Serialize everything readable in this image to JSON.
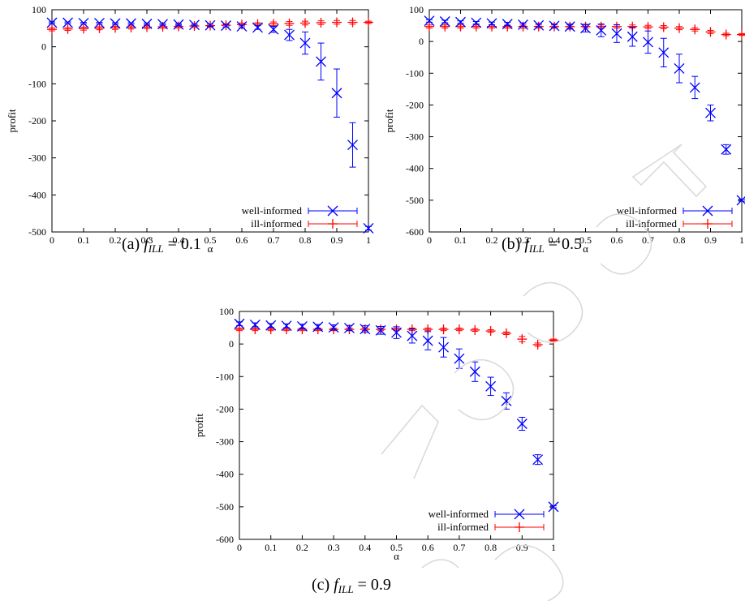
{
  "chart_data": [
    {
      "type": "scatter",
      "caption": {
        "prefix": "(a)",
        "var": "f",
        "sub": "ILL",
        "rest": " = 0.1"
      },
      "xlabel": "α",
      "ylabel": "profit",
      "xlim": [
        0,
        1
      ],
      "ylim": [
        -500,
        100
      ],
      "xticks": [
        0,
        0.1,
        0.2,
        0.3,
        0.4,
        0.5,
        0.6,
        0.7,
        0.8,
        0.9,
        1
      ],
      "xtick_labels": [
        "0",
        "0.1",
        "0.2",
        "0.3",
        "0.4",
        "0.5",
        "0.6",
        "0.7",
        "0.8",
        "0.9",
        "1"
      ],
      "yticks": [
        -500,
        -400,
        -300,
        -200,
        -100,
        0,
        100
      ],
      "ytick_labels": [
        "-500",
        "-400",
        "-300",
        "-200",
        "-100",
        "0",
        "100"
      ],
      "legend_position": "bottom-right",
      "grid": false,
      "x": [
        0,
        0.05,
        0.1,
        0.15,
        0.2,
        0.25,
        0.3,
        0.35,
        0.4,
        0.45,
        0.5,
        0.55,
        0.6,
        0.65,
        0.7,
        0.75,
        0.8,
        0.85,
        0.9,
        0.95,
        1
      ],
      "series": [
        {
          "name": "well-informed",
          "color": "#0000ff",
          "marker": "x",
          "values": [
            65,
            65,
            64,
            64,
            63,
            63,
            62,
            61,
            60,
            59,
            58,
            57,
            55,
            52,
            47,
            32,
            10,
            -40,
            -125,
            -265,
            -490
          ],
          "err": [
            2,
            2,
            2,
            2,
            2,
            2,
            2,
            2,
            2,
            2,
            3,
            3,
            4,
            5,
            8,
            15,
            30,
            50,
            65,
            60,
            5
          ]
        },
        {
          "name": "ill-informed",
          "color": "#ff0000",
          "marker": "+",
          "values": [
            47,
            48,
            49,
            50,
            51,
            52,
            53,
            54,
            55,
            56,
            57,
            58,
            60,
            61,
            62,
            63,
            64,
            65,
            66,
            66,
            66
          ],
          "err": [
            4,
            4,
            4,
            4,
            4,
            4,
            4,
            4,
            4,
            4,
            4,
            4,
            4,
            4,
            5,
            5,
            5,
            5,
            5,
            5,
            3
          ]
        }
      ]
    },
    {
      "type": "scatter",
      "caption": {
        "prefix": "(b)",
        "var": "f",
        "sub": "ILL",
        "rest": " = 0.5"
      },
      "xlabel": "α",
      "ylabel": "profit",
      "xlim": [
        0,
        1
      ],
      "ylim": [
        -600,
        100
      ],
      "xticks": [
        0,
        0.1,
        0.2,
        0.3,
        0.4,
        0.5,
        0.6,
        0.7,
        0.8,
        0.9,
        1
      ],
      "xtick_labels": [
        "0",
        "0.1",
        "0.2",
        "0.3",
        "0.4",
        "0.5",
        "0.6",
        "0.7",
        "0.8",
        "0.9",
        "1"
      ],
      "yticks": [
        -600,
        -500,
        -400,
        -300,
        -200,
        -100,
        0,
        100
      ],
      "ytick_labels": [
        "-600",
        "-500",
        "-400",
        "-300",
        "-200",
        "-100",
        "0",
        "100"
      ],
      "legend_position": "bottom-right",
      "grid": false,
      "x": [
        0,
        0.05,
        0.1,
        0.15,
        0.2,
        0.25,
        0.3,
        0.35,
        0.4,
        0.45,
        0.5,
        0.55,
        0.6,
        0.65,
        0.7,
        0.75,
        0.8,
        0.85,
        0.9,
        0.95,
        1
      ],
      "series": [
        {
          "name": "well-informed",
          "color": "#0000ff",
          "marker": "x",
          "values": [
            65,
            63,
            61,
            59,
            57,
            55,
            53,
            51,
            49,
            47,
            42,
            35,
            25,
            15,
            -2,
            -35,
            -85,
            -145,
            -225,
            -340,
            -500
          ],
          "err": [
            4,
            4,
            4,
            4,
            4,
            5,
            5,
            5,
            6,
            8,
            12,
            20,
            28,
            30,
            35,
            45,
            45,
            35,
            25,
            15,
            3
          ]
        },
        {
          "name": "ill-informed",
          "color": "#ff0000",
          "marker": "+",
          "values": [
            47,
            47,
            47,
            47,
            47,
            47,
            47,
            47,
            47,
            47,
            47,
            47,
            47,
            47,
            46,
            45,
            42,
            38,
            30,
            22,
            22
          ],
          "err": [
            5,
            5,
            5,
            5,
            5,
            5,
            5,
            5,
            5,
            5,
            5,
            5,
            5,
            5,
            5,
            5,
            5,
            5,
            5,
            4,
            3
          ]
        }
      ]
    },
    {
      "type": "scatter",
      "caption": {
        "prefix": "(c)",
        "var": "f",
        "sub": "ILL",
        "rest": " = 0.9"
      },
      "xlabel": "α",
      "ylabel": "profit",
      "xlim": [
        0,
        1
      ],
      "ylim": [
        -600,
        100
      ],
      "xticks": [
        0,
        0.1,
        0.2,
        0.3,
        0.4,
        0.5,
        0.6,
        0.7,
        0.8,
        0.9,
        1
      ],
      "xtick_labels": [
        "0",
        "0.1",
        "0.2",
        "0.3",
        "0.4",
        "0.5",
        "0.6",
        "0.7",
        "0.8",
        "0.9",
        "1"
      ],
      "yticks": [
        -600,
        -500,
        -400,
        -300,
        -200,
        -100,
        0,
        100
      ],
      "ytick_labels": [
        "-600",
        "-500",
        "-400",
        "-300",
        "-200",
        "-100",
        "0",
        "100"
      ],
      "legend_position": "bottom-right",
      "grid": false,
      "x": [
        0,
        0.05,
        0.1,
        0.15,
        0.2,
        0.25,
        0.3,
        0.35,
        0.4,
        0.45,
        0.5,
        0.55,
        0.6,
        0.65,
        0.7,
        0.75,
        0.8,
        0.85,
        0.9,
        0.95,
        1
      ],
      "series": [
        {
          "name": "well-informed",
          "color": "#0000ff",
          "marker": "x",
          "values": [
            62,
            59,
            57,
            56,
            54,
            53,
            51,
            49,
            46,
            42,
            35,
            25,
            10,
            -10,
            -45,
            -85,
            -130,
            -175,
            -245,
            -355,
            -500
          ],
          "err": [
            6,
            6,
            6,
            6,
            7,
            7,
            8,
            8,
            10,
            12,
            18,
            22,
            28,
            30,
            30,
            30,
            28,
            25,
            20,
            15,
            3
          ]
        },
        {
          "name": "ill-informed",
          "color": "#ff0000",
          "marker": "+",
          "values": [
            45,
            45,
            45,
            45,
            45,
            45,
            45,
            45,
            45,
            45,
            45,
            45,
            45,
            45,
            45,
            43,
            40,
            33,
            15,
            -2,
            12
          ],
          "err": [
            4,
            4,
            4,
            4,
            4,
            4,
            4,
            4,
            4,
            4,
            4,
            4,
            4,
            4,
            4,
            4,
            4,
            4,
            8,
            5,
            3
          ]
        }
      ]
    }
  ]
}
